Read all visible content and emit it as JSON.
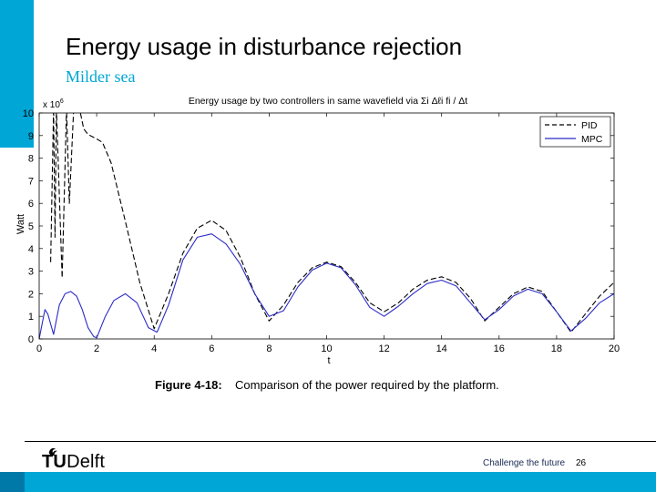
{
  "slide": {
    "title": "Energy usage in disturbance rejection",
    "subtitle": "Milder sea"
  },
  "footer": {
    "logo_tu": "TU",
    "logo_delft": "Delft",
    "slogan": "Challenge the future",
    "page_number": "26"
  },
  "colors": {
    "accent": "#00a6d6",
    "pid": "#000000",
    "mpc": "#2b2bc8"
  },
  "chart_data": {
    "type": "line",
    "title": "Energy usage by two controllers in same wavefield via Σi Δℓi fi / Δt",
    "xlabel": "t",
    "ylabel": "Watt",
    "multiplier_label": "x 10",
    "multiplier_exponent": "6",
    "xlim": [
      0,
      20
    ],
    "ylim": [
      0,
      10
    ],
    "x_ticks": [
      0,
      2,
      4,
      6,
      8,
      10,
      12,
      14,
      16,
      18,
      20
    ],
    "y_ticks": [
      0,
      1,
      2,
      3,
      4,
      5,
      6,
      7,
      8,
      9,
      10
    ],
    "legend_position": "top-right",
    "caption_label": "Figure 4-18:",
    "caption_text": "Comparison of the power required by the platform.",
    "series": [
      {
        "name": "PID",
        "style": "dashed",
        "points": [
          [
            0.4,
            3.4
          ],
          [
            0.5,
            10.2
          ],
          [
            0.55,
            4.5
          ],
          [
            0.6,
            10.2
          ],
          [
            0.8,
            2.7
          ],
          [
            0.95,
            10.2
          ],
          [
            1.05,
            6.0
          ],
          [
            1.2,
            10.2
          ],
          [
            1.4,
            10.2
          ],
          [
            1.55,
            9.3
          ],
          [
            1.7,
            9.05
          ],
          [
            2.0,
            8.85
          ],
          [
            2.2,
            8.7
          ],
          [
            2.5,
            7.8
          ],
          [
            3.0,
            5.2
          ],
          [
            3.5,
            2.5
          ],
          [
            4.0,
            0.45
          ],
          [
            4.5,
            2.0
          ],
          [
            5.0,
            3.8
          ],
          [
            5.5,
            4.9
          ],
          [
            6.0,
            5.25
          ],
          [
            6.5,
            4.8
          ],
          [
            7.0,
            3.6
          ],
          [
            7.5,
            2.0
          ],
          [
            8.0,
            0.8
          ],
          [
            8.5,
            1.5
          ],
          [
            9.0,
            2.5
          ],
          [
            9.5,
            3.15
          ],
          [
            10.0,
            3.4
          ],
          [
            10.5,
            3.2
          ],
          [
            11.0,
            2.5
          ],
          [
            11.5,
            1.6
          ],
          [
            12.0,
            1.2
          ],
          [
            12.5,
            1.6
          ],
          [
            13.0,
            2.2
          ],
          [
            13.5,
            2.6
          ],
          [
            14.0,
            2.75
          ],
          [
            14.5,
            2.5
          ],
          [
            15.0,
            1.8
          ],
          [
            15.5,
            0.8
          ],
          [
            16.0,
            1.4
          ],
          [
            16.5,
            2.0
          ],
          [
            17.0,
            2.3
          ],
          [
            17.5,
            2.1
          ],
          [
            18.0,
            1.2
          ],
          [
            18.5,
            0.3
          ],
          [
            19.0,
            1.1
          ],
          [
            19.5,
            1.9
          ],
          [
            20.0,
            2.5
          ]
        ]
      },
      {
        "name": "MPC",
        "style": "solid",
        "points": [
          [
            0.0,
            0.0
          ],
          [
            0.2,
            1.3
          ],
          [
            0.3,
            1.1
          ],
          [
            0.5,
            0.2
          ],
          [
            0.7,
            1.5
          ],
          [
            0.9,
            2.0
          ],
          [
            1.1,
            2.1
          ],
          [
            1.3,
            1.9
          ],
          [
            1.5,
            1.3
          ],
          [
            1.7,
            0.5
          ],
          [
            1.9,
            0.1
          ],
          [
            2.0,
            0.05
          ],
          [
            2.3,
            1.0
          ],
          [
            2.6,
            1.7
          ],
          [
            3.0,
            2.0
          ],
          [
            3.4,
            1.6
          ],
          [
            3.8,
            0.5
          ],
          [
            4.1,
            0.3
          ],
          [
            4.5,
            1.5
          ],
          [
            5.0,
            3.5
          ],
          [
            5.5,
            4.5
          ],
          [
            6.0,
            4.65
          ],
          [
            6.5,
            4.2
          ],
          [
            7.0,
            3.3
          ],
          [
            7.5,
            2.0
          ],
          [
            8.0,
            1.0
          ],
          [
            8.5,
            1.25
          ],
          [
            9.0,
            2.3
          ],
          [
            9.5,
            3.05
          ],
          [
            10.0,
            3.35
          ],
          [
            10.5,
            3.15
          ],
          [
            11.0,
            2.4
          ],
          [
            11.5,
            1.4
          ],
          [
            12.0,
            1.0
          ],
          [
            12.5,
            1.45
          ],
          [
            13.0,
            2.0
          ],
          [
            13.5,
            2.45
          ],
          [
            14.0,
            2.6
          ],
          [
            14.5,
            2.35
          ],
          [
            15.0,
            1.6
          ],
          [
            15.5,
            0.85
          ],
          [
            16.0,
            1.3
          ],
          [
            16.5,
            1.9
          ],
          [
            17.0,
            2.2
          ],
          [
            17.5,
            2.0
          ],
          [
            18.0,
            1.2
          ],
          [
            18.5,
            0.35
          ],
          [
            19.0,
            0.9
          ],
          [
            19.5,
            1.6
          ],
          [
            20.0,
            2.0
          ]
        ]
      }
    ]
  }
}
